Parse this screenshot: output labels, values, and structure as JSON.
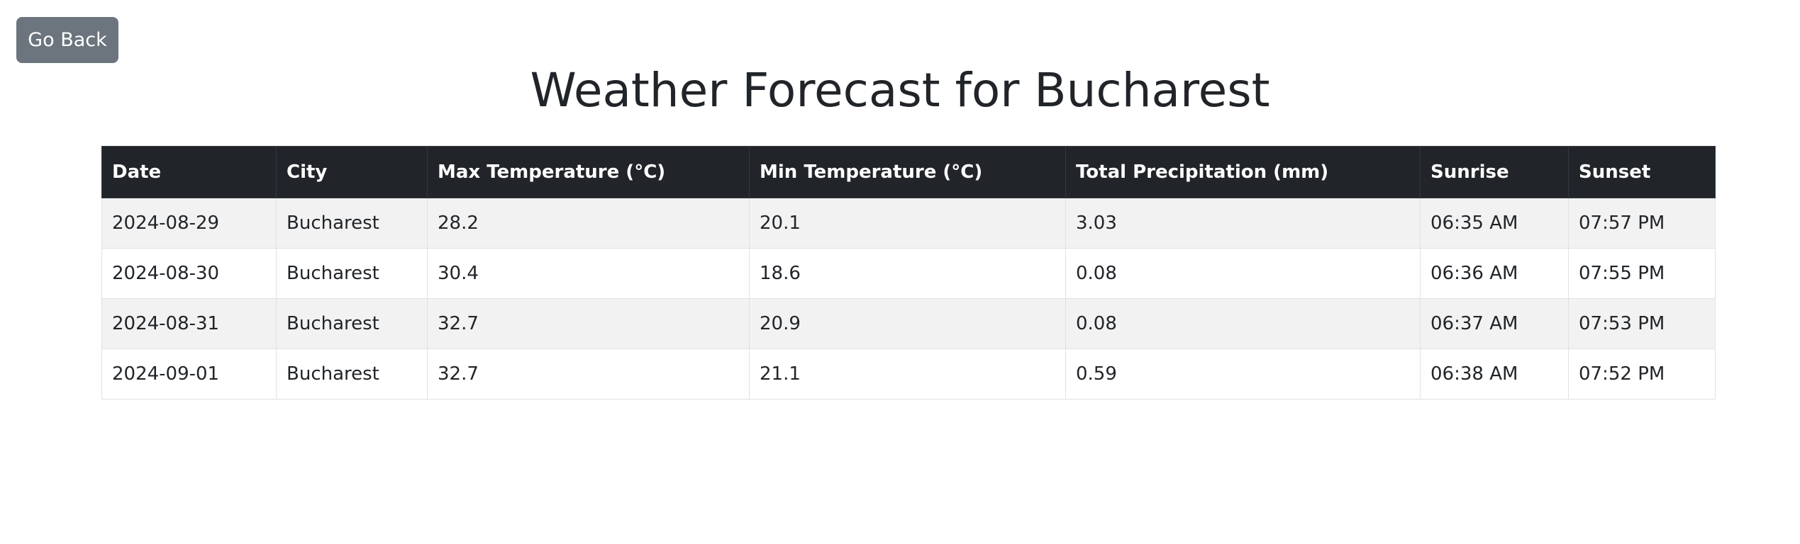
{
  "nav": {
    "go_back_label": "Go Back"
  },
  "page_title": "Weather Forecast for Bucharest",
  "table": {
    "headers": {
      "date": "Date",
      "city": "City",
      "max_temp": "Max Temperature (°C)",
      "min_temp": "Min Temperature (°C)",
      "precipitation": "Total Precipitation (mm)",
      "sunrise": "Sunrise",
      "sunset": "Sunset"
    },
    "rows": [
      {
        "date": "2024-08-29",
        "city": "Bucharest",
        "max_temp": "28.2",
        "min_temp": "20.1",
        "precipitation": "3.03",
        "sunrise": "06:35 AM",
        "sunset": "07:57 PM"
      },
      {
        "date": "2024-08-30",
        "city": "Bucharest",
        "max_temp": "30.4",
        "min_temp": "18.6",
        "precipitation": "0.08",
        "sunrise": "06:36 AM",
        "sunset": "07:55 PM"
      },
      {
        "date": "2024-08-31",
        "city": "Bucharest",
        "max_temp": "32.7",
        "min_temp": "20.9",
        "precipitation": "0.08",
        "sunrise": "06:37 AM",
        "sunset": "07:53 PM"
      },
      {
        "date": "2024-09-01",
        "city": "Bucharest",
        "max_temp": "32.7",
        "min_temp": "21.1",
        "precipitation": "0.59",
        "sunrise": "06:38 AM",
        "sunset": "07:52 PM"
      }
    ]
  },
  "colors": {
    "button_bg": "#6c757d",
    "header_bg": "#212529",
    "stripe_bg": "#f2f2f2",
    "text": "#212529"
  }
}
